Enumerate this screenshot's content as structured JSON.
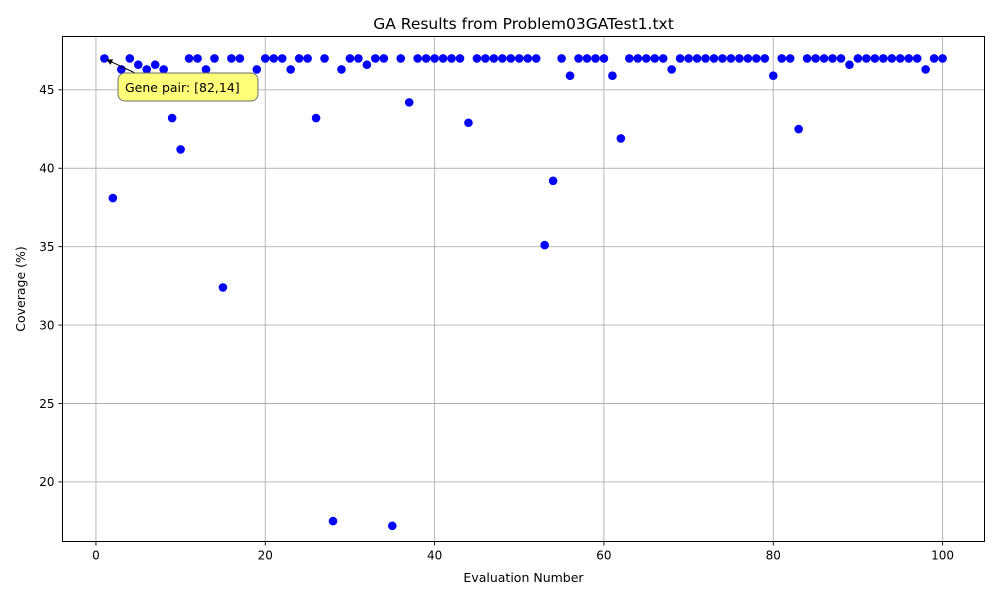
{
  "chart_data": {
    "type": "scatter",
    "title": "GA Results from Problem03GATest1.txt",
    "xlabel": "Evaluation Number",
    "ylabel": "Coverage (%)",
    "xlim": [
      -3.95,
      104.95
    ],
    "ylim": [
      16.2,
      48.4
    ],
    "xticks": [
      0,
      20,
      40,
      60,
      80,
      100
    ],
    "yticks": [
      20,
      25,
      30,
      35,
      40,
      45
    ],
    "grid": true,
    "marker_color": "#0000ff",
    "series": [
      {
        "x": [
          1,
          2,
          3,
          4,
          5,
          6,
          7,
          8,
          9,
          10,
          11,
          12,
          13,
          14,
          15,
          16,
          17,
          18,
          19,
          20,
          21,
          22,
          23,
          24,
          25,
          26,
          27,
          28,
          29,
          30,
          31,
          32,
          33,
          34,
          35,
          36,
          37,
          38,
          39,
          40,
          41,
          42,
          43,
          44,
          45,
          46,
          47,
          48,
          49,
          50,
          51,
          52,
          53,
          54,
          55,
          56,
          57,
          58,
          59,
          60,
          61,
          62,
          63,
          64,
          65,
          66,
          67,
          68,
          69,
          70,
          71,
          72,
          73,
          74,
          75,
          76,
          77,
          78,
          79,
          80,
          81,
          82,
          83,
          84,
          85,
          86,
          87,
          88,
          89,
          90,
          91,
          92,
          93,
          94,
          95,
          96,
          97,
          98,
          99,
          100
        ],
        "y": [
          47.0,
          38.1,
          46.3,
          47.0,
          46.6,
          46.3,
          46.6,
          46.3,
          43.2,
          41.2,
          47.0,
          47.0,
          46.3,
          47.0,
          32.4,
          47.0,
          47.0,
          45.6,
          46.3,
          47.0,
          47.0,
          47.0,
          46.3,
          47.0,
          47.0,
          43.2,
          47.0,
          17.5,
          46.3,
          47.0,
          47.0,
          46.6,
          47.0,
          47.0,
          17.2,
          47.0,
          44.2,
          47.0,
          47.0,
          47.0,
          47.0,
          47.0,
          47.0,
          42.9,
          47.0,
          47.0,
          47.0,
          47.0,
          47.0,
          47.0,
          47.0,
          47.0,
          35.1,
          39.2,
          47.0,
          45.9,
          47.0,
          47.0,
          47.0,
          47.0,
          45.9,
          41.9,
          47.0,
          47.0,
          47.0,
          47.0,
          47.0,
          46.3,
          47.0,
          47.0,
          47.0,
          47.0,
          47.0,
          47.0,
          47.0,
          47.0,
          47.0,
          47.0,
          47.0,
          45.9,
          47.0,
          47.0,
          42.5,
          47.0,
          47.0,
          47.0,
          47.0,
          47.0,
          46.6,
          47.0,
          47.0,
          47.0,
          47.0,
          47.0,
          47.0,
          47.0,
          47.0,
          46.3,
          47.0,
          47.0
        ]
      }
    ],
    "annotation": {
      "text": "Gene pair: [82,14]",
      "box_color": "#ffff7a",
      "target_x": 1,
      "target_y": 47.0
    }
  }
}
